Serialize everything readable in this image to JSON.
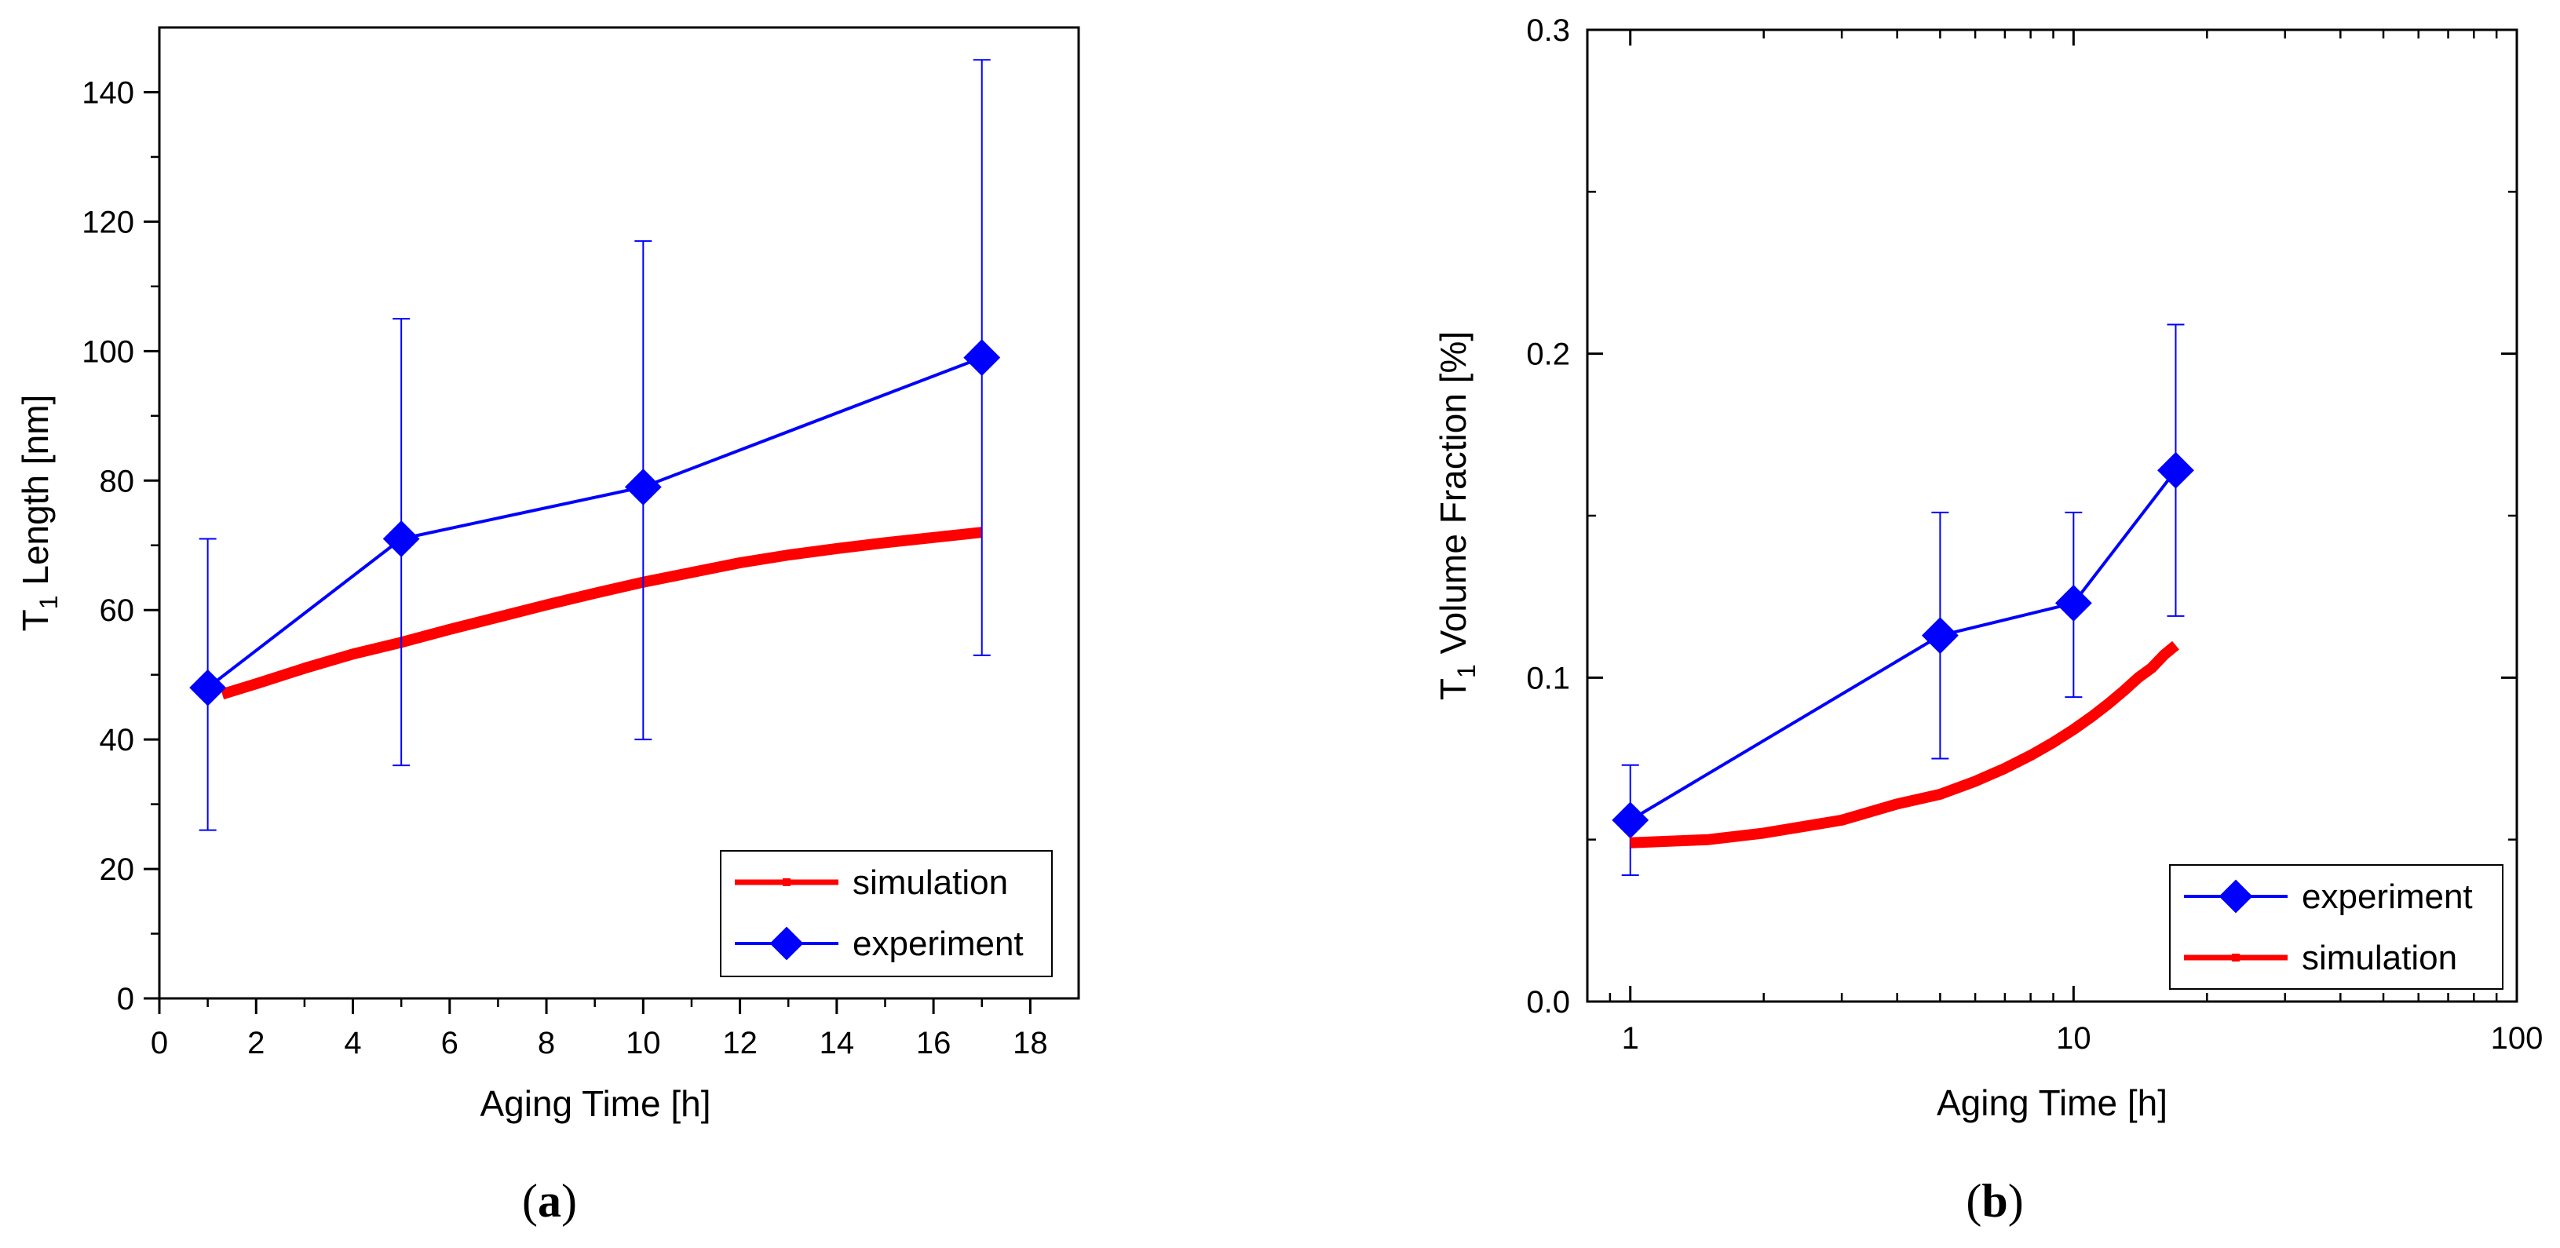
{
  "colors": {
    "simulation": "#ff0000",
    "experiment": "#0000ff",
    "axis": "#000000"
  },
  "chart_data": [
    {
      "id": "a",
      "panel_label": {
        "open": "(",
        "letter": "a",
        "close": ")"
      },
      "type": "line",
      "xscale": "linear",
      "xlim": [
        0,
        19
      ],
      "ylim": [
        0,
        150
      ],
      "xticks": [
        0,
        2,
        4,
        6,
        8,
        10,
        12,
        14,
        16,
        18
      ],
      "xtick_labels": [
        "0",
        "2",
        "4",
        "6",
        "8",
        "10",
        "12",
        "14",
        "16",
        "18"
      ],
      "yticks": [
        0,
        20,
        40,
        60,
        80,
        100,
        120,
        140
      ],
      "ytick_labels": [
        "0",
        "20",
        "40",
        "60",
        "80",
        "100",
        "120",
        "140"
      ],
      "xlabel": "Aging Time [h]",
      "ylabel": {
        "prefix": "T",
        "subscript": "1",
        "suffix": " Length [nm]"
      },
      "legend": {
        "position": "bottom-right",
        "entries": [
          {
            "label": "simulation",
            "series": "simulation"
          },
          {
            "label": "experiment",
            "series": "experiment"
          }
        ]
      },
      "series": [
        {
          "name": "simulation",
          "style": "thick-line",
          "x": [
            1.3,
            2,
            3,
            4,
            5,
            6,
            7,
            8,
            9,
            10,
            11,
            12,
            13,
            14,
            15,
            16,
            17
          ],
          "y": [
            47.0,
            48.6,
            51.0,
            53.2,
            55.0,
            57.0,
            58.9,
            60.8,
            62.6,
            64.3,
            65.8,
            67.3,
            68.5,
            69.5,
            70.4,
            71.2,
            72.0
          ]
        },
        {
          "name": "experiment",
          "style": "line-diamond",
          "x": [
            1,
            5,
            10,
            17
          ],
          "y": [
            48,
            71,
            79,
            99
          ],
          "err_low": [
            26,
            36,
            40,
            53
          ],
          "err_high": [
            71,
            105,
            117,
            145
          ]
        }
      ]
    },
    {
      "id": "b",
      "panel_label": {
        "open": "(",
        "letter": "b",
        "close": ")"
      },
      "type": "line",
      "xscale": "log",
      "xlim": [
        0.8,
        100
      ],
      "ylim": [
        0.0,
        0.3
      ],
      "xticks": [
        1,
        10,
        100
      ],
      "xtick_labels": [
        "1",
        "10",
        "100"
      ],
      "yticks": [
        0.0,
        0.1,
        0.2,
        0.3
      ],
      "ytick_labels": [
        "0.0",
        "0.1",
        "0.2",
        "0.3"
      ],
      "xlabel": "Aging Time [h]",
      "ylabel": {
        "prefix": "T",
        "subscript": "1",
        "suffix": " Volume Fraction [%]"
      },
      "legend": {
        "position": "bottom-right",
        "entries": [
          {
            "label": "experiment",
            "series": "experiment"
          },
          {
            "label": "simulation",
            "series": "simulation"
          }
        ]
      },
      "series": [
        {
          "name": "experiment",
          "style": "line-diamond",
          "x": [
            1,
            5,
            10,
            17
          ],
          "y": [
            0.056,
            0.113,
            0.123,
            0.164
          ],
          "err_low": [
            0.039,
            0.075,
            0.094,
            0.119
          ],
          "err_high": [
            0.073,
            0.151,
            0.151,
            0.209
          ]
        },
        {
          "name": "simulation",
          "style": "thick-line",
          "x": [
            1,
            1.5,
            2,
            3,
            4,
            5,
            6,
            7,
            8,
            9,
            10,
            11,
            12,
            13,
            14,
            15,
            16,
            17
          ],
          "y": [
            0.049,
            0.05,
            0.052,
            0.056,
            0.061,
            0.064,
            0.068,
            0.072,
            0.076,
            0.08,
            0.084,
            0.088,
            0.092,
            0.096,
            0.1,
            0.103,
            0.107,
            0.11
          ]
        }
      ]
    }
  ]
}
